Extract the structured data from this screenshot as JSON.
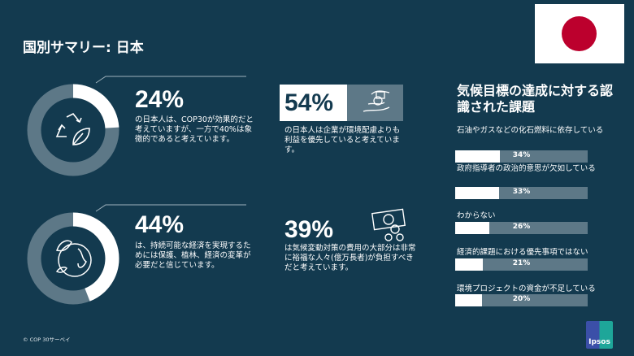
{
  "title": "国別サマリー: 日本",
  "flag": {
    "country": "Japan",
    "red": "#bc002d"
  },
  "stats": [
    {
      "value": "24%",
      "percent": 24,
      "icon": "recycle-leaf-icon",
      "text": "の日本人は、COP30が効果的だと考えていますが、一方で40%は象徴的であると考えています。"
    },
    {
      "value": "54%",
      "icon": "hands-money-icon",
      "text": "の日本人は企業が環境配慮よりも利益を優先していると考えています。"
    },
    {
      "value": "44%",
      "percent": 44,
      "icon": "globe-leaf-icon",
      "text": "は、持続可能な経済を実現するためには保護、植林、経済の変革が必要だと信じています。"
    },
    {
      "value": "39%",
      "icon": "money-bills-icon",
      "text": "は気候変動対策の費用の大部分は非常に裕福な人々(億万長者)が負担すべきだと考えています。"
    }
  ],
  "chart_title": "気候目標の達成に対する認識された課題",
  "chart_data": {
    "type": "bar",
    "title": "気候目標の達成に対する認識された課題",
    "categories": [
      "石油やガスなどの化石燃料に依存している",
      "政府指導者の政治的意思が欠如している",
      "わからない",
      "経済的課題における優先事項ではない",
      "環境プロジェクトの資金が不足している"
    ],
    "values": [
      34,
      33,
      26,
      21,
      20
    ],
    "labels": [
      "34%",
      "33%",
      "26%",
      "21%",
      "20%"
    ],
    "xlim": [
      0,
      100
    ]
  },
  "footer": "© COP 30サーベイ",
  "logo": "Ipsos",
  "colors": {
    "background": "#133a4f",
    "track": "#5d7887",
    "accent": "#ffffff"
  }
}
